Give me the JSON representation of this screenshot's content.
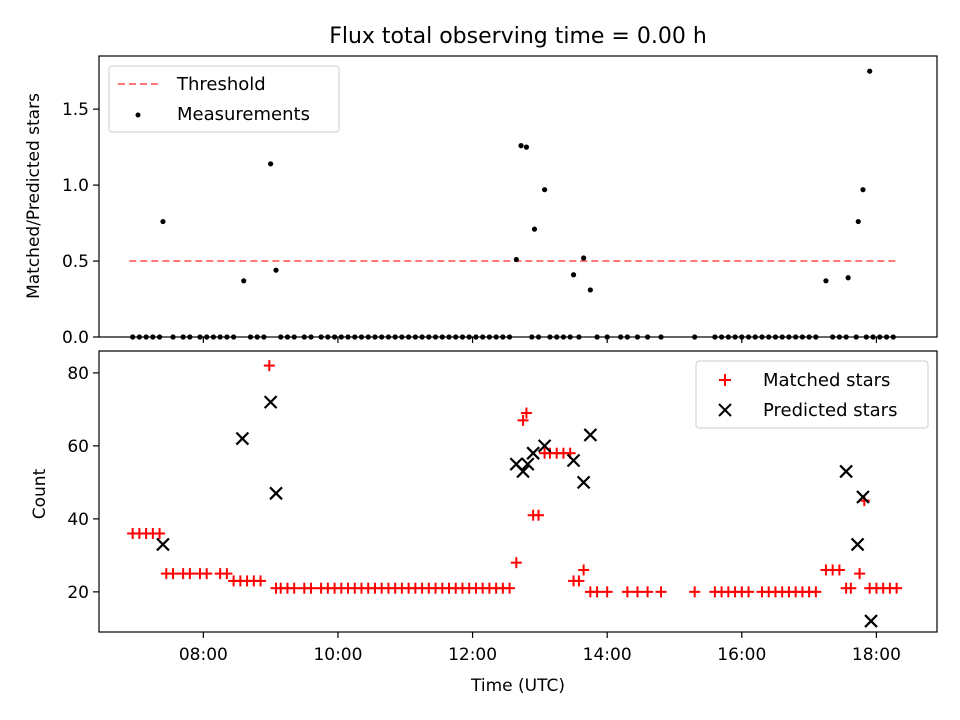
{
  "chart_data": [
    {
      "type": "scatter",
      "title": "Flux total observing time = 0.00 h",
      "xlabel": "",
      "ylabel": "Matched/Predicted stars",
      "xlim": [
        6.45,
        18.9
      ],
      "ylim": [
        0,
        1.85
      ],
      "yticks": [
        0.0,
        0.5,
        1.0,
        1.5
      ],
      "xticks": [
        8,
        10,
        12,
        14,
        16,
        18
      ],
      "legend": "top-left",
      "threshold": {
        "name": "Threshold",
        "value": 0.5,
        "x": [
          6.9,
          18.3
        ],
        "color": "#ff7777"
      },
      "series": [
        {
          "name": "Measurements",
          "color": "#000000",
          "x": [
            6.95,
            7.05,
            7.15,
            7.25,
            7.35,
            7.4,
            7.55,
            7.7,
            7.8,
            7.95,
            8.05,
            8.15,
            8.25,
            8.35,
            8.45,
            8.6,
            8.7,
            8.8,
            8.9,
            9.0,
            9.08,
            9.15,
            9.25,
            9.35,
            9.5,
            9.6,
            9.75,
            9.85,
            9.95,
            10.05,
            10.15,
            10.25,
            10.35,
            10.45,
            10.55,
            10.65,
            10.75,
            10.85,
            10.95,
            11.05,
            11.15,
            11.25,
            11.35,
            11.45,
            11.55,
            11.65,
            11.75,
            11.85,
            11.95,
            12.05,
            12.15,
            12.25,
            12.35,
            12.45,
            12.55,
            12.65,
            12.72,
            12.8,
            12.88,
            12.92,
            12.98,
            13.07,
            13.15,
            13.25,
            13.35,
            13.45,
            13.5,
            13.58,
            13.65,
            13.75,
            13.85,
            14.0,
            14.2,
            14.3,
            14.45,
            14.6,
            14.8,
            15.3,
            15.6,
            15.7,
            15.8,
            15.9,
            16.0,
            16.1,
            16.2,
            16.3,
            16.4,
            16.5,
            16.6,
            16.7,
            16.8,
            16.9,
            17.0,
            17.1,
            17.25,
            17.35,
            17.45,
            17.55,
            17.58,
            17.7,
            17.73,
            17.8,
            17.85,
            17.9,
            17.95,
            18.05,
            18.15,
            18.25
          ],
          "y": [
            0,
            0,
            0,
            0,
            0,
            0.76,
            0,
            0,
            0,
            0,
            0,
            0,
            0,
            0,
            0,
            0.37,
            0,
            0,
            0,
            1.14,
            0.44,
            0,
            0,
            0,
            0,
            0,
            0,
            0,
            0,
            0,
            0,
            0,
            0,
            0,
            0,
            0,
            0,
            0,
            0,
            0,
            0,
            0,
            0,
            0,
            0,
            0,
            0,
            0,
            0,
            0,
            0,
            0,
            0,
            0,
            0,
            0.51,
            1.26,
            1.25,
            0,
            0.71,
            0,
            0.97,
            0,
            0,
            0,
            0,
            0.41,
            0,
            0.52,
            0.31,
            0,
            0,
            0,
            0,
            0,
            0,
            0,
            0,
            0,
            0,
            0,
            0,
            0,
            0,
            0,
            0,
            0,
            0,
            0,
            0,
            0,
            0,
            0,
            0,
            0.37,
            0,
            0,
            0,
            0.39,
            0,
            0.76,
            0.97,
            0,
            1.75,
            0,
            0,
            0,
            0
          ]
        }
      ]
    },
    {
      "type": "scatter",
      "title": "",
      "xlabel": "Time (UTC)",
      "ylabel": "Count",
      "xlim": [
        6.45,
        18.9
      ],
      "ylim": [
        9,
        86
      ],
      "yticks": [
        20,
        40,
        60,
        80
      ],
      "xticks": [
        8,
        10,
        12,
        14,
        16,
        18
      ],
      "xticklabels": [
        "08:00",
        "10:00",
        "12:00",
        "14:00",
        "16:00",
        "18:00"
      ],
      "legend": "top-right",
      "series": [
        {
          "name": "Matched stars",
          "marker": "plus",
          "color": "#ff0000",
          "x": [
            6.95,
            7.05,
            7.15,
            7.25,
            7.35,
            7.45,
            7.55,
            7.7,
            7.8,
            7.95,
            8.05,
            8.25,
            8.35,
            8.45,
            8.55,
            8.65,
            8.75,
            8.85,
            8.98,
            9.08,
            9.15,
            9.25,
            9.35,
            9.5,
            9.6,
            9.75,
            9.85,
            9.95,
            10.05,
            10.15,
            10.25,
            10.35,
            10.45,
            10.55,
            10.65,
            10.75,
            10.85,
            10.95,
            11.05,
            11.15,
            11.25,
            11.35,
            11.45,
            11.55,
            11.65,
            11.75,
            11.85,
            11.95,
            12.05,
            12.15,
            12.25,
            12.35,
            12.45,
            12.55,
            12.65,
            12.75,
            12.8,
            12.9,
            12.98,
            13.07,
            13.15,
            13.25,
            13.35,
            13.45,
            13.5,
            13.58,
            13.65,
            13.75,
            13.85,
            14.0,
            14.3,
            14.45,
            14.6,
            14.8,
            15.3,
            15.6,
            15.7,
            15.8,
            15.9,
            16.0,
            16.1,
            16.3,
            16.4,
            16.5,
            16.6,
            16.7,
            16.8,
            16.9,
            17.0,
            17.1,
            17.25,
            17.35,
            17.45,
            17.55,
            17.62,
            17.75,
            17.82,
            17.9,
            18.0,
            18.1,
            18.2,
            18.3
          ],
          "y": [
            36,
            36,
            36,
            36,
            36,
            25,
            25,
            25,
            25,
            25,
            25,
            25,
            25,
            23,
            23,
            23,
            23,
            23,
            82,
            21,
            21,
            21,
            21,
            21,
            21,
            21,
            21,
            21,
            21,
            21,
            21,
            21,
            21,
            21,
            21,
            21,
            21,
            21,
            21,
            21,
            21,
            21,
            21,
            21,
            21,
            21,
            21,
            21,
            21,
            21,
            21,
            21,
            21,
            21,
            28,
            67,
            69,
            41,
            41,
            58,
            58,
            58,
            58,
            58,
            23,
            23,
            26,
            20,
            20,
            20,
            20,
            20,
            20,
            20,
            20,
            20,
            20,
            20,
            20,
            20,
            20,
            20,
            20,
            20,
            20,
            20,
            20,
            20,
            20,
            20,
            26,
            26,
            26,
            21,
            21,
            25,
            45,
            21,
            21,
            21,
            21,
            21
          ]
        },
        {
          "name": "Predicted stars",
          "marker": "x",
          "color": "#000000",
          "x": [
            7.4,
            8.58,
            9.0,
            9.08,
            12.65,
            12.75,
            12.82,
            12.9,
            13.07,
            13.5,
            13.65,
            13.75,
            17.55,
            17.72,
            17.8,
            17.92
          ],
          "y": [
            33,
            62,
            72,
            47,
            55,
            53,
            55,
            58,
            60,
            56,
            50,
            63,
            53,
            33,
            46,
            12
          ]
        }
      ]
    }
  ]
}
